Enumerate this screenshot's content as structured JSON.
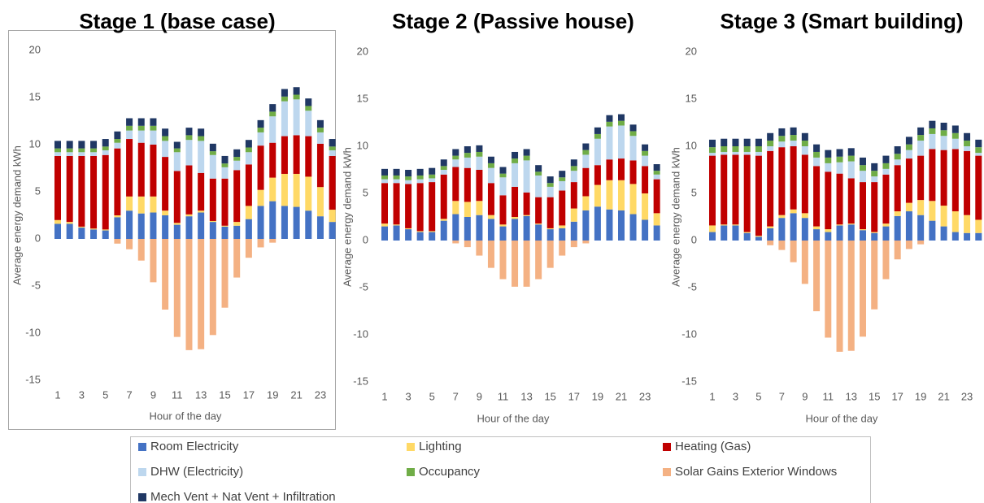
{
  "chart_data": [
    {
      "type": "bar",
      "stacked": true,
      "title": "Stage 1 (base case)",
      "ylabel": "Average energy demand kWh",
      "xlabel": "Hour of the day",
      "categories": [
        1,
        null,
        3,
        null,
        5,
        null,
        7,
        null,
        9,
        null,
        11,
        null,
        13,
        null,
        15,
        null,
        17,
        null,
        19,
        null,
        21,
        null,
        23,
        null
      ],
      "ylim": [
        -15,
        20
      ],
      "yticks": [
        -15,
        -10,
        -5,
        0,
        5,
        10,
        15,
        20
      ],
      "grid": false,
      "series": [
        {
          "name": "Room Electricity",
          "color": "#4472c4",
          "values": [
            1.6,
            1.6,
            1.2,
            1.0,
            0.9,
            2.3,
            3.0,
            2.7,
            2.8,
            2.5,
            1.5,
            2.4,
            2.8,
            1.8,
            1.3,
            1.4,
            2.1,
            3.5,
            4.0,
            3.5,
            3.4,
            3.0,
            2.4,
            1.8
          ]
        },
        {
          "name": "Lighting",
          "color": "#ffd966",
          "values": [
            0.4,
            0.2,
            0.1,
            0.1,
            0.1,
            0.2,
            1.5,
            1.8,
            1.7,
            0.5,
            0.2,
            0.2,
            0.2,
            0.1,
            0.1,
            0.4,
            1.4,
            1.7,
            2.5,
            3.4,
            3.5,
            3.6,
            3.1,
            1.3
          ]
        },
        {
          "name": "Heating (Gas)",
          "color": "#c00000",
          "values": [
            6.8,
            7.0,
            7.5,
            7.7,
            7.9,
            7.1,
            6.1,
            5.7,
            5.5,
            5.7,
            5.5,
            5.2,
            4.0,
            4.5,
            5.0,
            5.5,
            4.4,
            4.7,
            3.7,
            4.0,
            4.1,
            4.3,
            4.6,
            5.7
          ]
        },
        {
          "name": "DHW (Electricity)",
          "color": "#bdd7ee",
          "values": [
            0.4,
            0.4,
            0.4,
            0.4,
            0.5,
            0.6,
            0.9,
            1.3,
            1.5,
            1.7,
            2.0,
            2.7,
            3.4,
            2.5,
            1.2,
            1.0,
            1.3,
            1.4,
            2.8,
            3.7,
            3.8,
            2.7,
            1.2,
            0.6
          ]
        },
        {
          "name": "Occupancy",
          "color": "#70ad47",
          "values": [
            0.4,
            0.4,
            0.4,
            0.4,
            0.4,
            0.4,
            0.5,
            0.5,
            0.5,
            0.5,
            0.4,
            0.5,
            0.5,
            0.4,
            0.4,
            0.4,
            0.5,
            0.5,
            0.5,
            0.5,
            0.5,
            0.5,
            0.5,
            0.4
          ]
        },
        {
          "name": "Solar Gains Exterior Windows",
          "color": "#f4b183",
          "values": [
            0,
            0,
            0,
            0,
            0,
            -0.5,
            -1.1,
            -2.3,
            -4.6,
            -7.5,
            -10.4,
            -11.8,
            -11.7,
            -10.2,
            -7.3,
            -4.1,
            -2.0,
            -0.9,
            -0.4,
            0,
            0,
            0,
            0,
            0
          ]
        },
        {
          "name": "Mech Vent + Nat Vent + Infiltration",
          "color": "#203864",
          "values": [
            0.8,
            0.8,
            0.8,
            0.8,
            0.8,
            0.8,
            0.8,
            0.8,
            0.8,
            0.8,
            0.7,
            0.8,
            0.8,
            0.8,
            0.8,
            0.8,
            0.8,
            0.8,
            0.8,
            0.8,
            0.8,
            0.8,
            0.8,
            0.8
          ]
        }
      ]
    },
    {
      "type": "bar",
      "stacked": true,
      "title": "Stage 2 (Passive house)",
      "ylabel": "Average energy demand kWh",
      "xlabel": "Hour of the day",
      "categories": [
        1,
        null,
        3,
        null,
        5,
        null,
        7,
        null,
        9,
        null,
        11,
        null,
        13,
        null,
        15,
        null,
        17,
        null,
        19,
        null,
        21,
        null,
        23,
        null
      ],
      "ylim": [
        -15,
        20
      ],
      "yticks": [
        -15,
        -10,
        -5,
        0,
        5,
        10,
        15,
        20
      ],
      "grid": false,
      "series": [
        {
          "name": "Room Electricity",
          "color": "#4472c4",
          "values": [
            1.5,
            1.6,
            1.2,
            0.9,
            0.9,
            2.1,
            2.8,
            2.5,
            2.7,
            2.3,
            1.5,
            2.3,
            2.6,
            1.7,
            1.2,
            1.3,
            2.0,
            3.2,
            3.6,
            3.3,
            3.2,
            2.8,
            2.2,
            1.6
          ]
        },
        {
          "name": "Lighting",
          "color": "#ffd966",
          "values": [
            0.3,
            0.1,
            0.1,
            0.1,
            0.1,
            0.2,
            1.4,
            1.6,
            1.5,
            0.4,
            0.2,
            0.2,
            0.1,
            0.1,
            0.1,
            0.3,
            1.4,
            1.5,
            2.3,
            3.1,
            3.2,
            3.2,
            2.8,
            1.3
          ]
        },
        {
          "name": "Heating (Gas)",
          "color": "#c00000",
          "values": [
            4.3,
            4.4,
            4.7,
            5.1,
            5.2,
            4.7,
            3.6,
            3.6,
            3.3,
            3.4,
            3.1,
            3.2,
            2.4,
            2.8,
            3.3,
            3.7,
            2.8,
            3.0,
            2.1,
            2.2,
            2.3,
            2.5,
            2.9,
            3.6
          ]
        },
        {
          "name": "DHW (Electricity)",
          "color": "#bdd7ee",
          "values": [
            0.4,
            0.4,
            0.4,
            0.4,
            0.4,
            0.5,
            0.8,
            1.1,
            1.4,
            1.6,
            1.9,
            2.5,
            3.4,
            2.3,
            1.1,
            1.0,
            1.2,
            1.4,
            2.8,
            3.5,
            3.5,
            2.6,
            1.1,
            0.5
          ]
        },
        {
          "name": "Occupancy",
          "color": "#70ad47",
          "values": [
            0.4,
            0.4,
            0.4,
            0.4,
            0.4,
            0.4,
            0.4,
            0.5,
            0.5,
            0.5,
            0.4,
            0.5,
            0.5,
            0.4,
            0.4,
            0.4,
            0.5,
            0.5,
            0.5,
            0.5,
            0.5,
            0.5,
            0.5,
            0.4
          ]
        },
        {
          "name": "Solar Gains Exterior Windows",
          "color": "#f4b183",
          "values": [
            0,
            0,
            0,
            0,
            0,
            0,
            -0.3,
            -0.7,
            -1.6,
            -2.9,
            -4.1,
            -4.9,
            -4.9,
            -4.1,
            -2.9,
            -1.6,
            -0.7,
            -0.3,
            0,
            0,
            0,
            0,
            0,
            0
          ]
        },
        {
          "name": "Mech Vent + Nat Vent + Infiltration",
          "color": "#203864",
          "values": [
            0.7,
            0.7,
            0.7,
            0.7,
            0.7,
            0.7,
            0.7,
            0.7,
            0.7,
            0.7,
            0.7,
            0.7,
            0.7,
            0.7,
            0.7,
            0.7,
            0.7,
            0.7,
            0.7,
            0.7,
            0.7,
            0.7,
            0.7,
            0.7
          ]
        }
      ]
    },
    {
      "type": "bar",
      "stacked": true,
      "title": "Stage 3 (Smart building)",
      "ylabel": "Average energy demand kWh",
      "xlabel": "Hour of the day",
      "categories": [
        1,
        null,
        3,
        null,
        5,
        null,
        7,
        null,
        9,
        null,
        11,
        null,
        13,
        null,
        15,
        null,
        17,
        null,
        19,
        null,
        21,
        null,
        23,
        null
      ],
      "ylim": [
        -15,
        20
      ],
      "yticks": [
        -15,
        -10,
        -5,
        0,
        5,
        10,
        15,
        20
      ],
      "grid": false,
      "series": [
        {
          "name": "Room Electricity",
          "color": "#4472c4",
          "values": [
            0.9,
            1.6,
            1.6,
            0.8,
            0.4,
            1.3,
            2.4,
            2.9,
            2.4,
            1.2,
            0.9,
            1.6,
            1.7,
            1.1,
            0.8,
            1.5,
            2.6,
            3.1,
            2.7,
            2.1,
            1.5,
            0.9,
            0.8,
            0.8
          ]
        },
        {
          "name": "Lighting",
          "color": "#ffd966",
          "values": [
            0.7,
            0.1,
            0.1,
            0.1,
            0.1,
            0.2,
            0.3,
            0.4,
            0.5,
            0.3,
            0.3,
            0.1,
            0.1,
            0.1,
            0.1,
            0.3,
            0.5,
            0.9,
            1.6,
            2.1,
            2.2,
            2.2,
            1.9,
            1.4
          ]
        },
        {
          "name": "Heating (Gas)",
          "color": "#c00000",
          "values": [
            7.4,
            7.4,
            7.4,
            8.2,
            8.5,
            8.0,
            7.2,
            6.7,
            6.2,
            6.4,
            6.1,
            5.4,
            4.8,
            5.0,
            5.3,
            5.2,
            4.9,
            4.7,
            4.7,
            5.5,
            5.9,
            6.6,
            6.8,
            6.8
          ]
        },
        {
          "name": "DHW (Electricity)",
          "color": "#bdd7ee",
          "values": [
            0.3,
            0.3,
            0.3,
            0.3,
            0.4,
            0.5,
            0.6,
            0.6,
            0.9,
            0.9,
            0.9,
            1.2,
            1.8,
            1.2,
            0.6,
            0.6,
            0.6,
            0.9,
            1.6,
            1.6,
            1.5,
            1.1,
            0.5,
            0.3
          ]
        },
        {
          "name": "Occupancy",
          "color": "#70ad47",
          "values": [
            0.6,
            0.6,
            0.6,
            0.6,
            0.6,
            0.6,
            0.6,
            0.6,
            0.6,
            0.6,
            0.6,
            0.6,
            0.6,
            0.6,
            0.6,
            0.6,
            0.6,
            0.6,
            0.6,
            0.6,
            0.6,
            0.6,
            0.6,
            0.6
          ]
        },
        {
          "name": "Solar Gains Exterior Windows",
          "color": "#f4b183",
          "values": [
            0,
            0,
            0,
            0,
            0,
            -0.5,
            -1.0,
            -2.3,
            -4.6,
            -7.5,
            -10.3,
            -11.8,
            -11.7,
            -10.2,
            -7.3,
            -4.1,
            -2.0,
            -0.9,
            -0.4,
            0,
            0,
            0,
            0,
            0
          ]
        },
        {
          "name": "Mech Vent + Nat Vent + Infiltration",
          "color": "#203864",
          "values": [
            0.8,
            0.8,
            0.8,
            0.8,
            0.8,
            0.8,
            0.8,
            0.8,
            0.8,
            0.8,
            0.8,
            0.8,
            0.8,
            0.8,
            0.8,
            0.8,
            0.8,
            0.8,
            0.8,
            0.8,
            0.8,
            0.8,
            0.8,
            0.8
          ]
        }
      ]
    }
  ]
}
